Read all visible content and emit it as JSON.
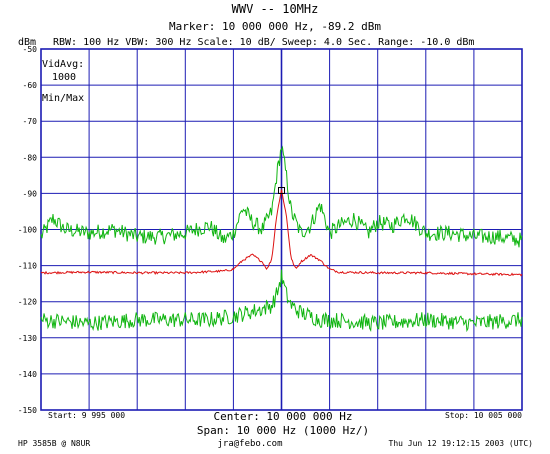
{
  "header": {
    "title": "WWV -- 10MHz",
    "marker_line": "Marker: 10 000 000 Hz, -89.2 dBm",
    "unit_label": "dBm",
    "settings_line": "RBW: 100 Hz  VBW: 300 Hz  Scale: 10 dB/  Sweep: 4.0 Sec.  Range: -10.0 dBm"
  },
  "panel": {
    "vid_avg_label": "VidAvg:",
    "vid_avg_value": "1000",
    "mode_label": "Min/Max"
  },
  "footer": {
    "start": "Start: 9 995 000",
    "center": "Center: 10 000 000 Hz",
    "stop": "Stop: 10 005 000",
    "span": "Span: 10 000 Hz (1000 Hz/)",
    "instrument": "HP 3585B @ N8UR",
    "email": "jra@febo.com",
    "timestamp": "Thu Jun 12 19:12:15 2003 (UTC)"
  },
  "colors": {
    "grid": "#1c1cb4",
    "frame": "#1c1cb4",
    "max_trace": "#11b511",
    "min_trace": "#11b511",
    "avg_trace": "#dd1111",
    "marker": "#000000"
  },
  "chart_data": {
    "type": "line",
    "title": "WWV -- 10MHz",
    "ylabel": "dBm",
    "xlim": [
      9995000,
      10005000
    ],
    "ylim": [
      -150,
      -50
    ],
    "y_ticks": [
      -50,
      -60,
      -70,
      -80,
      -90,
      -100,
      -110,
      -120,
      -130,
      -140,
      -150
    ],
    "x_divisions": 10,
    "grid": true,
    "marker": {
      "x": 10000000,
      "y": -89.2
    },
    "series": [
      {
        "key": "max",
        "x": [
          9995000,
          9995250,
          9995500,
          9996000,
          9996500,
          9997000,
          9997500,
          9998000,
          9998200,
          9998500,
          9998800,
          9999000,
          9999200,
          9999400,
          9999600,
          9999800,
          9999900,
          10000000,
          10000100,
          10000200,
          10000400,
          10000600,
          10000800,
          10001000,
          10001200,
          10001500,
          10001800,
          10002000,
          10002300,
          10002600,
          10003000,
          10003500,
          10004000,
          10004500,
          10005000
        ],
        "values": [
          -102,
          -97,
          -100,
          -101,
          -100,
          -102,
          -102,
          -101,
          -100,
          -99,
          -103,
          -101,
          -94,
          -98,
          -100,
          -95,
          -85,
          -77,
          -85,
          -95,
          -101,
          -99,
          -93,
          -101,
          -99,
          -97,
          -101,
          -98,
          -99,
          -96,
          -101,
          -101,
          -102,
          -102,
          -103
        ]
      },
      {
        "key": "avg",
        "x": [
          9995000,
          9996000,
          9997000,
          9998000,
          9998800,
          9999000,
          9999200,
          9999400,
          9999600,
          9999700,
          9999800,
          9999900,
          10000000,
          10000100,
          10000200,
          10000300,
          10000400,
          10000600,
          10000800,
          10001000,
          10001200,
          10002000,
          10003000,
          10004000,
          10005000
        ],
        "values": [
          -112,
          -111.8,
          -112,
          -112,
          -111.5,
          -111,
          -108.5,
          -107,
          -109,
          -111,
          -108,
          -96,
          -89,
          -96,
          -108,
          -111,
          -109,
          -107,
          -108.5,
          -111,
          -111.8,
          -112,
          -112,
          -112.3,
          -112.5
        ]
      },
      {
        "key": "min",
        "x": [
          9995000,
          9996000,
          9997000,
          9998000,
          9998500,
          9999000,
          9999300,
          9999600,
          9999800,
          9999900,
          10000000,
          10000100,
          10000200,
          10000400,
          10000600,
          10000800,
          10001000,
          10002000,
          10003000,
          10004000,
          10005000
        ],
        "values": [
          -125,
          -126,
          -125,
          -125,
          -125,
          -124,
          -123,
          -122,
          -121,
          -118,
          -113,
          -118,
          -121,
          -123,
          -124,
          -125,
          -125,
          -126,
          -125,
          -126,
          -125
        ]
      }
    ]
  }
}
